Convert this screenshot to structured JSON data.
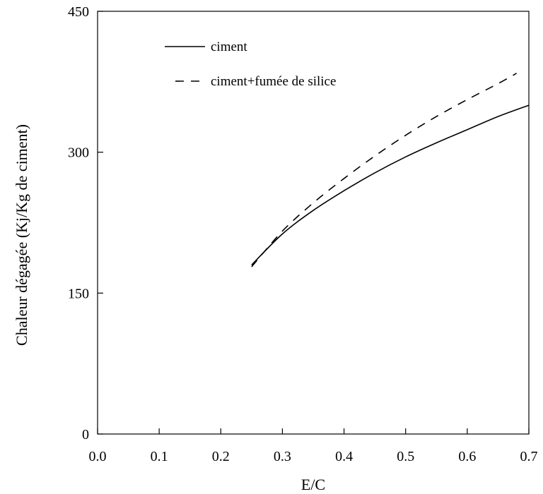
{
  "chart_data": {
    "type": "line",
    "title": "",
    "xlabel": "E/C",
    "ylabel": "Chaleur dégagée (Kj/Kg de ciment)",
    "xlim": [
      0.0,
      0.7
    ],
    "ylim": [
      0,
      450
    ],
    "xticks": [
      "0.0",
      "0.1",
      "0.2",
      "0.3",
      "0.4",
      "0.5",
      "0.6",
      "0.7"
    ],
    "yticks": [
      "0",
      "150",
      "300",
      "450"
    ],
    "grid": false,
    "legend_position": "top-left",
    "series": [
      {
        "name": "ciment",
        "style": "solid",
        "color": "#000000",
        "x": [
          0.25,
          0.3,
          0.35,
          0.4,
          0.45,
          0.5,
          0.55,
          0.6,
          0.65,
          0.7
        ],
        "y": [
          180,
          213,
          238,
          259,
          278,
          295,
          310,
          324,
          338,
          350
        ]
      },
      {
        "name": "ciment+fumée de silice",
        "style": "dashed",
        "color": "#000000",
        "x": [
          0.25,
          0.3,
          0.35,
          0.4,
          0.45,
          0.5,
          0.55,
          0.6,
          0.65,
          0.68
        ],
        "y": [
          178,
          216,
          246,
          272,
          296,
          318,
          338,
          356,
          373,
          384
        ]
      }
    ]
  }
}
